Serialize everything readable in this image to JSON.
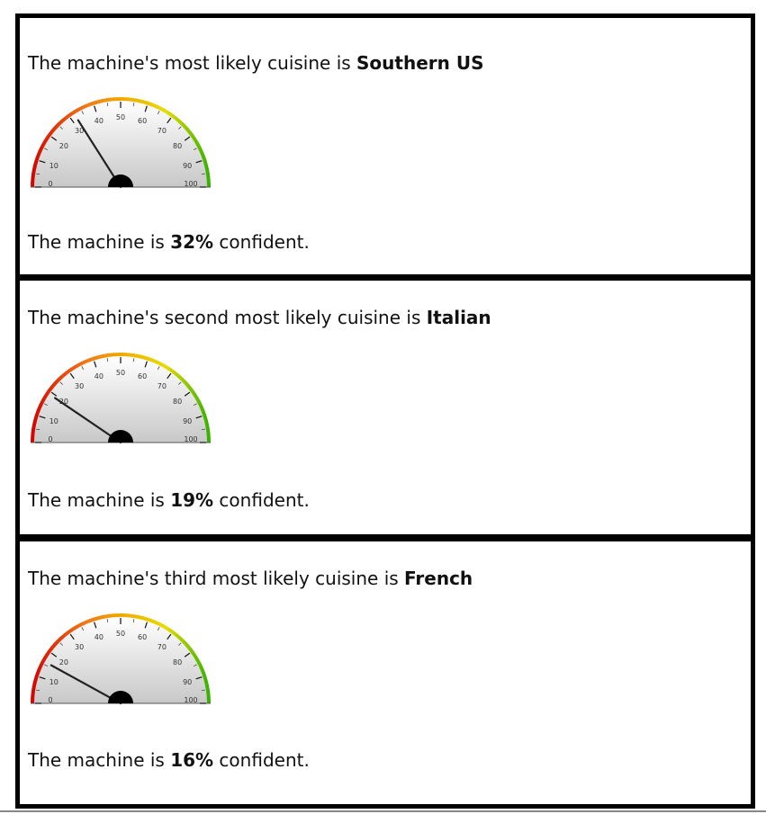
{
  "panels": [
    {
      "prefix": "The machine's most likely cuisine is ",
      "cuisine": "Southern US",
      "confidence_prefix": "The machine is ",
      "confidence": "32%",
      "confidence_suffix": " confident.",
      "gauge_value": 32
    },
    {
      "prefix": "The machine's second most likely cuisine is ",
      "cuisine": "Italian",
      "confidence_prefix": "The machine is ",
      "confidence": "19%",
      "confidence_suffix": " confident.",
      "gauge_value": 19
    },
    {
      "prefix": "The machine's third most likely cuisine is ",
      "cuisine": "French",
      "confidence_prefix": "The machine is ",
      "confidence": "16%",
      "confidence_suffix": " confident.",
      "gauge_value": 16
    }
  ],
  "gauge": {
    "min": 0,
    "max": 100,
    "tick_labels": [
      "0",
      "10",
      "20",
      "30",
      "40",
      "50",
      "60",
      "70",
      "80",
      "90",
      "100"
    ],
    "colors": {
      "low": "#d40000",
      "mid_low": "#f07818",
      "mid": "#f0a800",
      "mid_high": "#e8dc00",
      "high": "#30b000",
      "needle": "#222222",
      "hub": "#000000",
      "face_top": "#ffffff",
      "face_bottom": "#c8c8c8"
    }
  }
}
